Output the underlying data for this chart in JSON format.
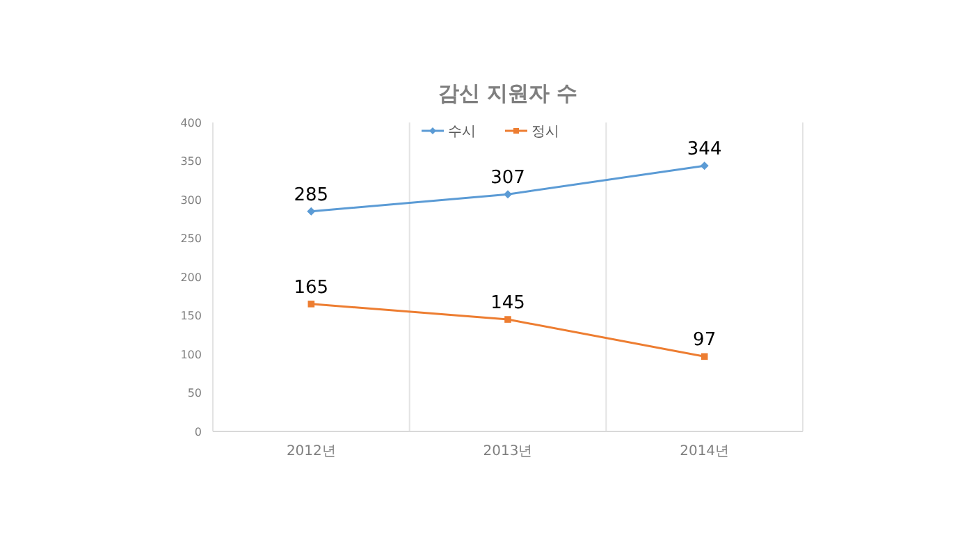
{
  "chart_data": {
    "type": "line",
    "title": "감신 지원자 수",
    "categories": [
      "2012년",
      "2013년",
      "2014년"
    ],
    "series": [
      {
        "name": "수시",
        "color": "#5b9bd5",
        "values": [
          285,
          307,
          344
        ],
        "marker": "diamond"
      },
      {
        "name": "정시",
        "color": "#ed7d31",
        "values": [
          165,
          145,
          97
        ],
        "marker": "square"
      }
    ],
    "ylim": [
      0,
      400
    ],
    "yticks": [
      0,
      50,
      100,
      150,
      200,
      250,
      300,
      350,
      400
    ],
    "grid": "x",
    "legend": "top",
    "data_labels": true
  }
}
